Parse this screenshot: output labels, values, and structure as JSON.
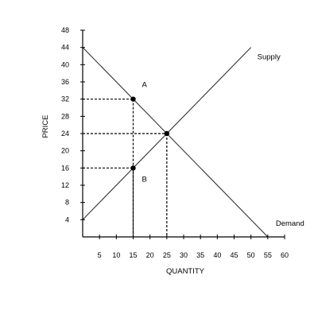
{
  "chart_data": {
    "type": "line",
    "xlabel": "QUANTITY",
    "ylabel": "PRICE",
    "xlim": [
      0,
      60
    ],
    "ylim": [
      0,
      48
    ],
    "x_ticks": [
      5,
      10,
      15,
      20,
      25,
      30,
      35,
      40,
      45,
      50,
      55,
      60
    ],
    "y_ticks": [
      4,
      8,
      12,
      16,
      20,
      24,
      28,
      32,
      36,
      40,
      44,
      48
    ],
    "grid": false,
    "series": [
      {
        "name": "Supply",
        "x": [
          0,
          50
        ],
        "y": [
          4,
          44
        ]
      },
      {
        "name": "Demand",
        "x": [
          0,
          55
        ],
        "y": [
          44,
          0
        ]
      }
    ],
    "points": [
      {
        "label": "A",
        "x": 15,
        "y": 32
      },
      {
        "label": "",
        "x": 25,
        "y": 24
      },
      {
        "label": "B",
        "x": 15,
        "y": 16
      }
    ],
    "guides": [
      {
        "x": 15,
        "y": 32
      },
      {
        "x": 25,
        "y": 24
      },
      {
        "x": 15,
        "y": 16
      }
    ]
  }
}
